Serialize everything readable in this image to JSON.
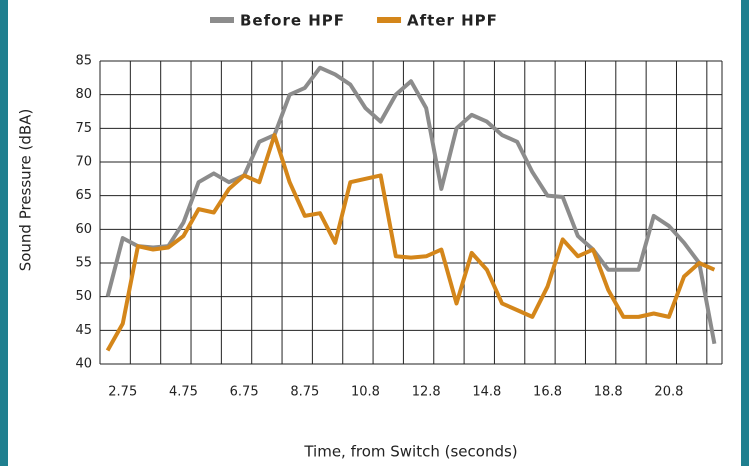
{
  "chart_data": {
    "type": "line",
    "x_label": "Time, from Switch (seconds)",
    "y_label": "Sound Pressure (dBA)",
    "categories": [
      null,
      "2.75",
      null,
      null,
      null,
      "4.75",
      null,
      null,
      null,
      "6.75",
      null,
      null,
      null,
      "8.75",
      null,
      null,
      null,
      "10.8",
      null,
      null,
      null,
      "12.8",
      null,
      null,
      null,
      "14.8",
      null,
      null,
      null,
      "16.8",
      null,
      null,
      null,
      "18.8",
      null,
      null,
      null,
      "20.8",
      null,
      null,
      null
    ],
    "series": [
      {
        "name": "Before HPF",
        "color": "#8c8c8c",
        "values": [
          50,
          58.7,
          57.5,
          57.3,
          57.5,
          61,
          67,
          68.3,
          67,
          68,
          73,
          74,
          80,
          81,
          84,
          83,
          81.5,
          78,
          76,
          80,
          82,
          78,
          66,
          75,
          77,
          76,
          74,
          73,
          68.5,
          65,
          64.8,
          59,
          57,
          54,
          54,
          54,
          62,
          60.5,
          58,
          55,
          43
        ]
      },
      {
        "name": "After HPF",
        "color": "#d4861a",
        "values": [
          42,
          46,
          57.5,
          57,
          57.3,
          59,
          63,
          62.5,
          66,
          68,
          67,
          74,
          67,
          62,
          62.4,
          58,
          67,
          67.5,
          68,
          56,
          55.8,
          56,
          57,
          49,
          56.5,
          54,
          49,
          48,
          47,
          51.5,
          58.5,
          56,
          57,
          51,
          47,
          47,
          47.5,
          47,
          53,
          55,
          54
        ]
      }
    ],
    "ylim": [
      40,
      85
    ],
    "yticks": [
      40,
      45,
      50,
      55,
      60,
      65,
      70,
      75,
      80,
      85
    ],
    "grid": true,
    "legend": "top"
  }
}
